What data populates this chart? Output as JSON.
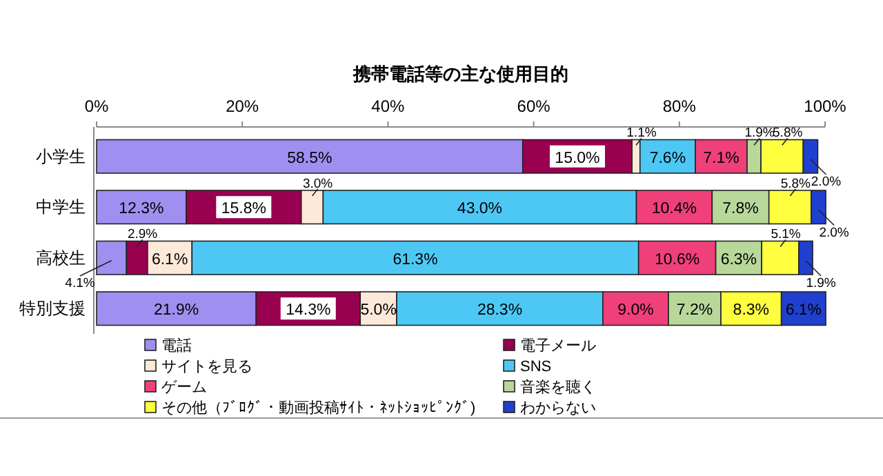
{
  "chart_data": {
    "type": "bar",
    "orientation": "horizontal",
    "stacked": true,
    "title": "携帯電話等の主な使用目的",
    "categories": [
      "小学生",
      "中学生",
      "高校生",
      "特別支援"
    ],
    "series": [
      {
        "name": "電話",
        "color": "#9f8ff0",
        "values": [
          58.5,
          12.3,
          4.1,
          21.9
        ],
        "value_labels": [
          "58.5%",
          "12.3%",
          "4.1%",
          "21.9%"
        ]
      },
      {
        "name": "電子メール",
        "color": "#990050",
        "values": [
          15.0,
          15.8,
          2.9,
          14.3
        ],
        "value_labels": [
          "15.0%",
          "15.8%",
          "2.9%",
          "14.3%"
        ]
      },
      {
        "name": "サイトを見る",
        "color": "#fde9d9",
        "values": [
          1.1,
          3.0,
          6.1,
          5.0
        ],
        "value_labels": [
          "1.1%",
          "3.0%",
          "6.1%",
          "5.0%"
        ]
      },
      {
        "name": "SNS",
        "color": "#4dc8f5",
        "values": [
          7.6,
          43.0,
          61.3,
          28.3
        ],
        "value_labels": [
          "7.6%",
          "43.0%",
          "61.3%",
          "28.3%"
        ]
      },
      {
        "name": "ゲーム",
        "color": "#f0407a",
        "values": [
          7.1,
          10.4,
          10.6,
          9.0
        ],
        "value_labels": [
          "7.1%",
          "10.4%",
          "10.6%",
          "9.0%"
        ]
      },
      {
        "name": "音楽を聴く",
        "color": "#b8d89a",
        "values": [
          1.9,
          7.8,
          6.3,
          7.2
        ],
        "value_labels": [
          "1.9%",
          "7.8%",
          "6.3%",
          "7.2%"
        ]
      },
      {
        "name": "その他（ﾌﾞﾛｸﾞ・動画投稿ｻｲﾄ・ﾈｯﾄｼｮｯﾋﾟﾝｸﾞ)",
        "color": "#ffff40",
        "values": [
          5.8,
          5.8,
          5.1,
          8.3
        ],
        "value_labels": [
          "5.8%",
          "5.8%",
          "5.1%",
          "8.3%"
        ]
      },
      {
        "name": "わからない",
        "color": "#2040d0",
        "values": [
          2.0,
          2.0,
          1.9,
          6.1
        ],
        "value_labels": [
          "2.0%",
          "2.0%",
          "1.9%",
          "6.1%"
        ]
      }
    ],
    "xlim": [
      0,
      100
    ],
    "xticks": [
      {
        "value": 0,
        "label": "0%"
      },
      {
        "value": 20,
        "label": "20%"
      },
      {
        "value": 40,
        "label": "40%"
      },
      {
        "value": 60,
        "label": "60%"
      },
      {
        "value": 80,
        "label": "80%"
      },
      {
        "value": 100,
        "label": "100%"
      }
    ],
    "legend": "bottom",
    "grid": false
  }
}
